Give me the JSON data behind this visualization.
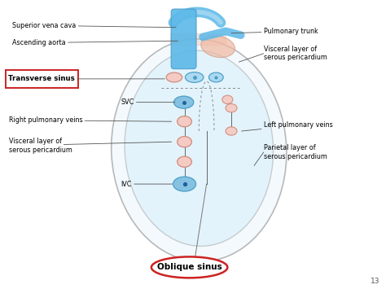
{
  "figsize": [
    4.74,
    3.55
  ],
  "dpi": 100,
  "background": "#ffffff",
  "labels": {
    "superior_vena_cava": "Superior vena cava",
    "ascending_aorta": "Ascending aorta",
    "transverse_sinus": "Transverse sinus",
    "svc": "SVC",
    "right_pulmonary_veins": "Right pulmonary veins",
    "visceral_layer_left": "Visceral layer of\nserous pericardium",
    "ivc": "IVC",
    "pulmonary_trunk": "Pulmonary trunk",
    "visceral_layer_right": "Visceral layer of\nserous pericardium",
    "left_pulmonary_veins": "Left pulmonary veins",
    "parietal_layer": "Parietal layer of\nserous pericardium",
    "oblique_sinus": "Oblique sinus",
    "page_num": "13"
  },
  "colors": {
    "blue_light": "#a8d8f0",
    "blue_mid": "#7bbde0",
    "blue_dark": "#4a9cc8",
    "blue_tube": "#5bb8e8",
    "pink_light": "#f5c8c0",
    "pink_mid": "#e8a898",
    "pink_dark": "#d08878",
    "salmon": "#e8b8a8",
    "red_box": "#cc2222",
    "line_color": "#555555",
    "heart_fill": "#d8eef8",
    "peri_outer": "#888888",
    "peri_inner": "#aaaaaa",
    "dashed": "#888888"
  }
}
